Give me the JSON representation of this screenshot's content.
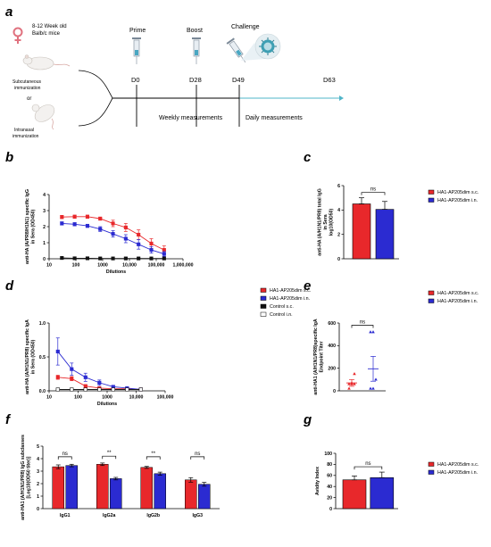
{
  "panels": {
    "a": {
      "letter": "a",
      "mice": "8-12 Week old\nBalb/c mice",
      "route1": "Subcutaneous\nimmunization",
      "or": "or",
      "route2": "Intranasal\nimmunization",
      "events": [
        {
          "label": "Prime",
          "day": "D0"
        },
        {
          "label": "Boost",
          "day": "D28"
        },
        {
          "label": "Challenge",
          "day": "D49"
        },
        {
          "label": "",
          "day": "D63"
        }
      ],
      "weekly": "Weekly measurements",
      "daily": "Daily measurements",
      "colors": {
        "line": "#000000",
        "arrow": "#4fb4c8",
        "female": "#e0727f"
      },
      "icons": [
        "female-symbol-icon",
        "mouse-icon",
        "syringe-icon",
        "virus-icon"
      ]
    },
    "b": {
      "letter": "b"
    },
    "c": {
      "letter": "c"
    },
    "d": {
      "letter": "d"
    },
    "e": {
      "letter": "e"
    },
    "f": {
      "letter": "f"
    },
    "g": {
      "letter": "g"
    }
  },
  "chart_data": [
    {
      "id": "b",
      "type": "line",
      "ylabel": "anti-HA (A/PR8/H1N1) specific IgG\nin Sera (OD450)",
      "xlabel": "Dilutions",
      "xscale": "log",
      "x_ticks": [
        "10",
        "100",
        "1000",
        "10,000",
        "100,000",
        "1,000,000"
      ],
      "y_ticks": [
        "0",
        "1",
        "2",
        "3",
        "4"
      ],
      "ylim": [
        0,
        4
      ],
      "x": [
        30,
        90,
        270,
        810,
        2430,
        7290,
        21870,
        65610,
        196830
      ],
      "series": [
        {
          "values": [
            2.6,
            2.62,
            2.62,
            2.5,
            2.2,
            1.95,
            1.5,
            0.95,
            0.55
          ],
          "err": [
            0.1,
            0.1,
            0.1,
            0.1,
            0.2,
            0.25,
            0.3,
            0.3,
            0.25
          ],
          "color": "#e8282b"
        },
        {
          "values": [
            2.2,
            2.15,
            2.05,
            1.85,
            1.55,
            1.25,
            0.9,
            0.55,
            0.3
          ],
          "err": [
            0.1,
            0.1,
            0.1,
            0.15,
            0.2,
            0.25,
            0.3,
            0.2,
            0.15
          ],
          "color": "#2b2bd1"
        },
        {
          "values": [
            0.05,
            0.03,
            0.03,
            0.02,
            0.02,
            0.02,
            0.02,
            0.02,
            0.02
          ],
          "err": [
            0,
            0,
            0,
            0,
            0,
            0,
            0,
            0,
            0
          ],
          "color": "#111111"
        }
      ]
    },
    {
      "id": "c",
      "type": "bar",
      "ylabel": "anti-HA (A/H1N1/PR8) total IgG\nin Sera\nlog10(OD50)",
      "y_ticks": [
        "0",
        "2",
        "4",
        "6"
      ],
      "ylim": [
        0,
        6
      ],
      "categories": [
        "s.c.",
        "i.n."
      ],
      "values": [
        4.5,
        4.05
      ],
      "err": [
        0.5,
        0.65
      ],
      "colors": [
        "#e8282b",
        "#2b2bd1"
      ],
      "significance": "ns"
    },
    {
      "id": "d",
      "type": "line",
      "ylabel": "anti-HA (A/H1N1/PR8) specific IgA\nin Sera (OD450)",
      "xlabel": "Dilutions",
      "xscale": "log",
      "x_ticks": [
        "10",
        "100",
        "1000",
        "10,000",
        "100,000"
      ],
      "y_ticks": [
        "0.0",
        "0.5",
        "1.0"
      ],
      "ylim": [
        0,
        1.0
      ],
      "x": [
        20,
        60,
        180,
        540,
        1620,
        4860,
        14580
      ],
      "series": [
        {
          "name": "HA1-AP205dim s.c.",
          "values": [
            0.2,
            0.18,
            0.07,
            0.04,
            0.03,
            0.03,
            0.02
          ],
          "err": [
            0.03,
            0.03,
            0.02,
            0.01,
            0.01,
            0.01,
            0
          ],
          "color": "#e8282b"
        },
        {
          "name": "HA1-AP205dim i.n.",
          "values": [
            0.58,
            0.32,
            0.2,
            0.12,
            0.06,
            0.04,
            0.02
          ],
          "err": [
            0.2,
            0.09,
            0.06,
            0.04,
            0.02,
            0.01,
            0.01
          ],
          "color": "#2b2bd1"
        },
        {
          "name": "Control s.c.",
          "values": [
            0.02,
            0.02,
            0.02,
            0.02,
            0.02,
            0.02,
            0.02
          ],
          "err": [
            0,
            0,
            0,
            0,
            0,
            0,
            0
          ],
          "color": "#111111"
        },
        {
          "name": "Control i.n.",
          "values": [
            0.02,
            0.02,
            0.02,
            0.02,
            0.02,
            0.02,
            0.02
          ],
          "err": [
            0,
            0,
            0,
            0,
            0,
            0,
            0
          ],
          "color": "#ffffff"
        }
      ]
    },
    {
      "id": "e",
      "type": "scatter",
      "ylabel": "anti-HA1 (A/H1N1/PR8)specific IgA\nEndpoint Titer",
      "y_ticks": [
        "0",
        "200",
        "400",
        "600"
      ],
      "ylim": [
        0,
        600
      ],
      "groups": [
        {
          "name": "HA1-AP205dim s.c.",
          "points": [
            20,
            60,
            60,
            60,
            70,
            150
          ],
          "mean": 70,
          "err": 30,
          "color": "#e8282b"
        },
        {
          "name": "HA1-AP205dim i.n.",
          "points": [
            20,
            20,
            100,
            520,
            520
          ],
          "mean": 195,
          "err": 110,
          "color": "#2b2bd1"
        }
      ],
      "significance": "ns"
    },
    {
      "id": "f",
      "type": "bar",
      "ylabel": "anti-HA1 (A/H1N1/PR8) IgG subclasses\n[Log10(OD50 titer)]",
      "y_ticks": [
        "0",
        "1",
        "2",
        "3",
        "4",
        "5"
      ],
      "ylim": [
        0,
        5
      ],
      "categories": [
        "IgG1",
        "IgG2a",
        "IgG2b",
        "IgG3"
      ],
      "series": [
        {
          "values": [
            3.35,
            3.55,
            3.3,
            2.3
          ],
          "err": [
            0.15,
            0.1,
            0.08,
            0.18
          ],
          "color": "#e8282b"
        },
        {
          "values": [
            3.45,
            2.4,
            2.8,
            1.95
          ],
          "err": [
            0.1,
            0.1,
            0.12,
            0.15
          ],
          "color": "#2b2bd1"
        }
      ],
      "significance": [
        "ns",
        "**",
        "**",
        "ns"
      ]
    },
    {
      "id": "g",
      "type": "bar",
      "ylabel": "Avidity Index",
      "y_ticks": [
        "0",
        "20",
        "40",
        "60",
        "80",
        "100"
      ],
      "ylim": [
        0,
        100
      ],
      "categories": [
        "HA1-AP205dim s.c.",
        "HA1-AP205dim i.n."
      ],
      "values": [
        52,
        56
      ],
      "err": [
        7,
        10
      ],
      "colors": [
        "#e8282b",
        "#2b2bd1"
      ],
      "significance": "ns"
    }
  ],
  "legends": {
    "cg": [
      {
        "label": "HA1-AP205dim s.c.",
        "color": "#e8282b"
      },
      {
        "label": "HA1-AP205dim i.n.",
        "color": "#2b2bd1"
      }
    ],
    "d": [
      {
        "label": "HA1-AP205dim s.c.",
        "color": "#e8282b"
      },
      {
        "label": "HA1-AP205dim i.n.",
        "color": "#2b2bd1"
      },
      {
        "label": "Control s.c.",
        "color": "#111111"
      },
      {
        "label": "Control i.n.",
        "color": "#ffffff"
      }
    ]
  }
}
